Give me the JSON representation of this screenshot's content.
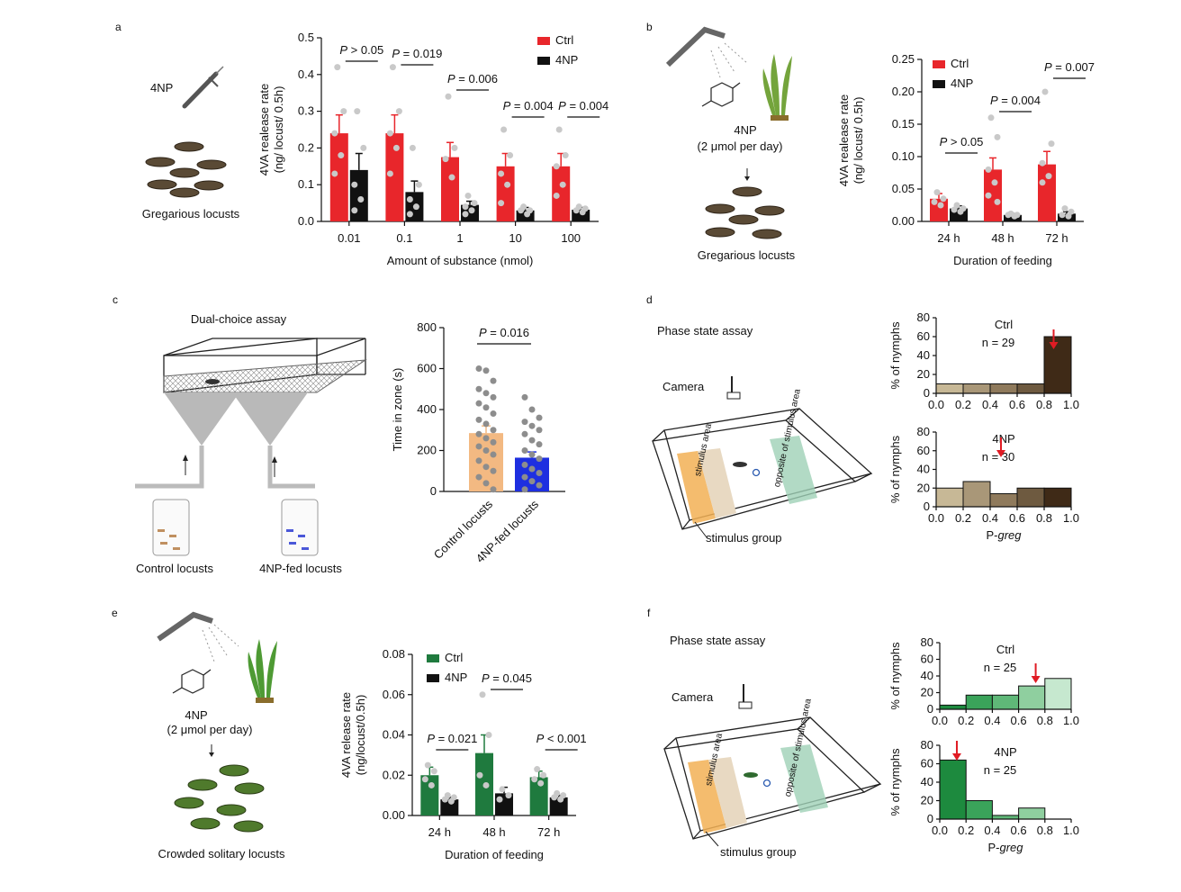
{
  "panels": {
    "a": {
      "label": "a",
      "drug": "4NP",
      "caption": "Gregarious locusts"
    },
    "b": {
      "label": "b",
      "compound": "4NP",
      "dose": "(2 μmol per day)",
      "caption": "Gregarious locusts"
    },
    "c": {
      "label": "c",
      "title": "Dual-choice assay",
      "left_caption": "Control locusts",
      "right_caption": "4NP-fed locusts"
    },
    "d": {
      "label": "d",
      "title": "Phase state assay",
      "camera": "Camera",
      "stimulus_area": "stimulus area",
      "opposite_area": "opposite of stimulus area",
      "stimulus_group": "stimulus group"
    },
    "e": {
      "label": "e",
      "compound": "4NP",
      "dose": "(2 μmol per day)",
      "caption": "Crowded solitary locusts"
    },
    "f": {
      "label": "f",
      "title": "Phase state assay",
      "camera": "Camera",
      "stimulus_area": "stimulus area",
      "opposite_area": "opposite of stimulus area",
      "stimulus_group": "stimulus group"
    }
  },
  "chart_data": [
    {
      "id": "a",
      "type": "bar",
      "categories": [
        "0.01",
        "0.1",
        "1",
        "10",
        "100"
      ],
      "series": [
        {
          "name": "Ctrl",
          "color": "#e8262b",
          "values": [
            0.24,
            0.24,
            0.175,
            0.15,
            0.15
          ],
          "errors": [
            0.05,
            0.05,
            0.04,
            0.035,
            0.035
          ]
        },
        {
          "name": "4NP",
          "color": "#111111",
          "values": [
            0.14,
            0.08,
            0.045,
            0.03,
            0.032
          ],
          "errors": [
            0.045,
            0.03,
            0.01,
            0.008,
            0.006
          ]
        }
      ],
      "points": [
        [
          [
            0.42,
            0.3,
            0.24,
            0.18,
            0.13
          ],
          [
            0.3,
            0.2,
            0.1,
            0.06,
            0.03
          ]
        ],
        [
          [
            0.42,
            0.3,
            0.24,
            0.2,
            0.13
          ],
          [
            0.2,
            0.1,
            0.06,
            0.04,
            0.02
          ]
        ],
        [
          [
            0.34,
            0.2,
            0.17,
            0.12
          ],
          [
            0.07,
            0.05,
            0.04,
            0.03,
            0.02
          ]
        ],
        [
          [
            0.25,
            0.18,
            0.13,
            0.1,
            0.05
          ],
          [
            0.04,
            0.03,
            0.03,
            0.02
          ]
        ],
        [
          [
            0.25,
            0.18,
            0.15,
            0.1,
            0.07
          ],
          [
            0.04,
            0.035,
            0.03,
            0.025
          ]
        ]
      ],
      "pvalues": [
        "P > 0.05",
        "P = 0.019",
        "P = 0.006",
        "P = 0.004",
        "P = 0.004"
      ],
      "ylim": [
        0,
        0.5
      ],
      "yticks": [
        "0.0",
        "0.1",
        "0.2",
        "0.3",
        "0.4",
        "0.5"
      ],
      "xlabel": "Amount of substance (nmol)",
      "ylabel": "4VA realease rate",
      "ylabel2": "(ng/ locust/ 0.5h)",
      "legend": [
        "Ctrl",
        "4NP"
      ]
    },
    {
      "id": "b",
      "type": "bar",
      "categories": [
        "24 h",
        "48 h",
        "72 h"
      ],
      "series": [
        {
          "name": "Ctrl",
          "color": "#e8262b",
          "values": [
            0.035,
            0.08,
            0.088
          ],
          "errors": [
            0.008,
            0.018,
            0.02
          ]
        },
        {
          "name": "4NP",
          "color": "#111111",
          "values": [
            0.02,
            0.01,
            0.012
          ],
          "errors": [
            0.004,
            0.002,
            0.003
          ]
        }
      ],
      "points": [
        [
          [
            0.045,
            0.035,
            0.03,
            0.025
          ],
          [
            0.025,
            0.02,
            0.018,
            0.015
          ]
        ],
        [
          [
            0.16,
            0.13,
            0.08,
            0.06,
            0.04,
            0.03
          ],
          [
            0.012,
            0.01,
            0.01,
            0.008
          ]
        ],
        [
          [
            0.2,
            0.12,
            0.09,
            0.07,
            0.06
          ],
          [
            0.02,
            0.015,
            0.01,
            0.008
          ]
        ]
      ],
      "pvalues": [
        "P > 0.05",
        "P = 0.004",
        "P = 0.007"
      ],
      "ylim": [
        0,
        0.25
      ],
      "yticks": [
        "0.00",
        "0.05",
        "0.10",
        "0.15",
        "0.20",
        "0.25"
      ],
      "xlabel": "Duration of feeding",
      "ylabel": "4VA realease rate",
      "ylabel2": "(ng/ locust/ 0.5h)",
      "legend": [
        "Ctrl",
        "4NP"
      ]
    },
    {
      "id": "c",
      "type": "bar",
      "categories": [
        "Control locusts",
        "4NP-fed locusts"
      ],
      "series": [
        {
          "name": "Time in zone",
          "colors": [
            "#f3b982",
            "#1e2fe0"
          ],
          "values": [
            285,
            165
          ],
          "errors": [
            35,
            28
          ]
        }
      ],
      "points": [
        [
          [
            600,
            590,
            540,
            500,
            480,
            460,
            430,
            410,
            380,
            350,
            330,
            300,
            280,
            260,
            240,
            220,
            200,
            180,
            150,
            120,
            100,
            70,
            40,
            10
          ]
        ],
        [
          [
            460,
            400,
            360,
            340,
            320,
            300,
            280,
            250,
            230,
            200,
            180,
            160,
            130,
            110,
            90,
            70,
            50,
            30,
            10
          ]
        ]
      ],
      "pvalue": "P = 0.016",
      "ylim": [
        0,
        800
      ],
      "yticks": [
        "0",
        "200",
        "400",
        "600",
        "800"
      ],
      "ylabel": "Time in zone (s)"
    },
    {
      "id": "d-ctrl",
      "type": "bar",
      "bins": [
        "0-0.2",
        "0.2-0.4",
        "0.4-0.6",
        "0.6-0.8",
        "0.8-1.0"
      ],
      "values": [
        10,
        10,
        10,
        10,
        60
      ],
      "colors": [
        "#c7b896",
        "#a99778",
        "#8f7a5c",
        "#6e5a40",
        "#3f2a17"
      ],
      "group": "Ctrl",
      "n": "n = 29",
      "arrow_at": 0.87,
      "ylim": [
        0,
        80
      ],
      "yticks": [
        "0",
        "20",
        "40",
        "60",
        "80"
      ],
      "xticks": [
        "0.0",
        "0.2",
        "0.4",
        "0.6",
        "0.8",
        "1.0"
      ],
      "ylabel": "% of nymphs"
    },
    {
      "id": "d-4np",
      "type": "bar",
      "bins": [
        "0-0.2",
        "0.2-0.4",
        "0.4-0.6",
        "0.6-0.8",
        "0.8-1.0"
      ],
      "values": [
        20,
        27,
        14,
        20,
        20
      ],
      "colors": [
        "#c7b896",
        "#a99778",
        "#8f7a5c",
        "#6e5a40",
        "#3f2a17"
      ],
      "group": "4NP",
      "n": "n = 30",
      "arrow_at": 0.48,
      "ylim": [
        0,
        80
      ],
      "yticks": [
        "0",
        "20",
        "40",
        "60",
        "80"
      ],
      "xticks": [
        "0.0",
        "0.2",
        "0.4",
        "0.6",
        "0.8",
        "1.0"
      ],
      "ylabel": "% of nymphs",
      "xlabel": "P-greg"
    },
    {
      "id": "e",
      "type": "bar",
      "categories": [
        "24 h",
        "48 h",
        "72 h"
      ],
      "series": [
        {
          "name": "Ctrl",
          "color": "#1f7a3e",
          "values": [
            0.02,
            0.031,
            0.019
          ],
          "errors": [
            0.004,
            0.009,
            0.003
          ]
        },
        {
          "name": "4NP",
          "color": "#111111",
          "values": [
            0.008,
            0.011,
            0.009
          ],
          "errors": [
            0.001,
            0.003,
            0.001
          ]
        }
      ],
      "points": [
        [
          [
            0.025,
            0.022,
            0.018,
            0.015
          ],
          [
            0.01,
            0.009,
            0.008,
            0.007
          ]
        ],
        [
          [
            0.06,
            0.04,
            0.02,
            0.015
          ],
          [
            0.013,
            0.01,
            0.008
          ]
        ],
        [
          [
            0.023,
            0.02,
            0.018,
            0.016
          ],
          [
            0.011,
            0.01,
            0.009,
            0.008
          ]
        ]
      ],
      "pvalues": [
        "P = 0.021",
        "P = 0.045",
        "P < 0.001"
      ],
      "ylim": [
        0,
        0.08
      ],
      "yticks": [
        "0.00",
        "0.02",
        "0.04",
        "0.06",
        "0.08"
      ],
      "xlabel": "Duration of feeding",
      "ylabel": "4VA release rate",
      "ylabel2": "(ng/locust/0.5h)",
      "legend": [
        "Ctrl",
        "4NP"
      ]
    },
    {
      "id": "f-ctrl",
      "type": "bar",
      "bins": [
        "0-0.2",
        "0.2-0.4",
        "0.4-0.6",
        "0.6-0.8",
        "0.8-1.0"
      ],
      "values": [
        5,
        17,
        17,
        28,
        37
      ],
      "colors": [
        "#1d8a3e",
        "#3aa35a",
        "#5fb878",
        "#8fcf9f",
        "#c6e8cf"
      ],
      "group": "Ctrl",
      "n": "n = 25",
      "arrow_at": 0.73,
      "ylim": [
        0,
        80
      ],
      "yticks": [
        "0",
        "20",
        "40",
        "60",
        "80"
      ],
      "xticks": [
        "0.0",
        "0.2",
        "0.4",
        "0.6",
        "0.8",
        "1.0"
      ],
      "ylabel": "% of nymphs"
    },
    {
      "id": "f-4np",
      "type": "bar",
      "bins": [
        "0-0.2",
        "0.2-0.4",
        "0.4-0.6",
        "0.6-0.8",
        "0.8-1.0"
      ],
      "values": [
        64,
        20,
        4,
        12,
        0
      ],
      "colors": [
        "#1d8a3e",
        "#3aa35a",
        "#5fb878",
        "#8fcf9f",
        "#c6e8cf"
      ],
      "group": "4NP",
      "n": "n = 25",
      "arrow_at": 0.13,
      "ylim": [
        0,
        80
      ],
      "yticks": [
        "0",
        "20",
        "40",
        "60",
        "80"
      ],
      "xticks": [
        "0.0",
        "0.2",
        "0.4",
        "0.6",
        "0.8",
        "1.0"
      ],
      "ylabel": "% of nymphs",
      "xlabel": "P-greg"
    }
  ]
}
